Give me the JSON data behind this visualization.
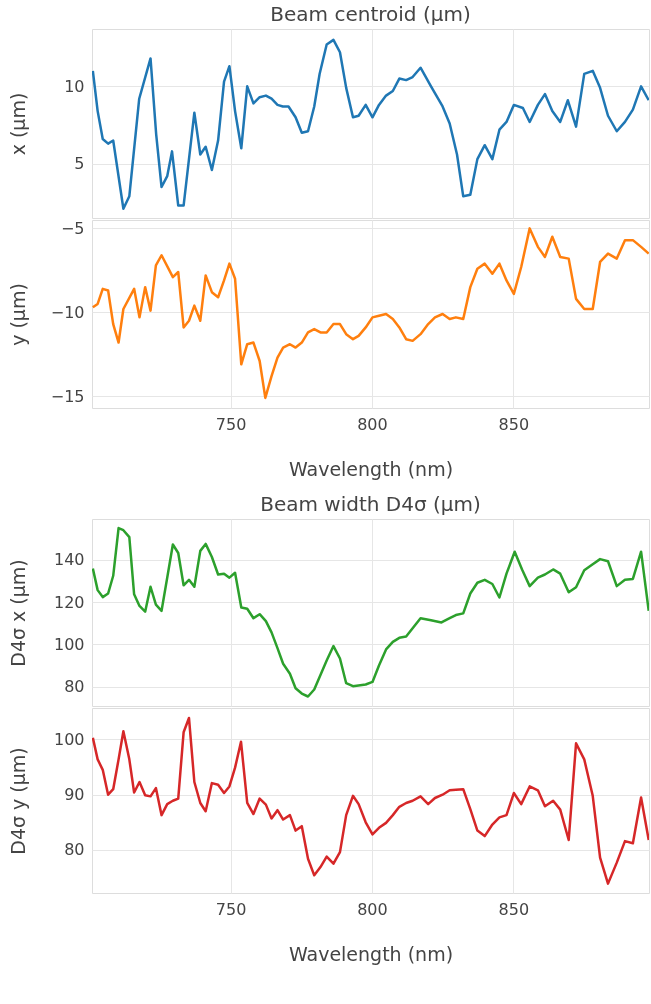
{
  "chart_data": [
    {
      "type": "line",
      "title": "Beam centroid (µm)",
      "ylabel": "x (µm)",
      "xlim": [
        701,
        898
      ],
      "xticks": [
        750,
        800,
        850
      ],
      "ylim": [
        1.5,
        13.7
      ],
      "yticks": [
        5,
        10
      ],
      "grid": true,
      "tick_labels": "y",
      "x": [
        701.3,
        703,
        704.8,
        706.7,
        708.5,
        712.1,
        714.2,
        717.7,
        721.7,
        723.7,
        725.6,
        727.6,
        729.3,
        731.5,
        733.4,
        737.2,
        739.3,
        741.2,
        743.4,
        745.6,
        747.7,
        749.6,
        751.6,
        753.8,
        755.9,
        758.1,
        760.3,
        762.5,
        764.5,
        766.6,
        768.5,
        770.5,
        773,
        775.2,
        777.4,
        779.6,
        781.5,
        784,
        786.4,
        788.7,
        790.9,
        793.3,
        795.3,
        797.8,
        800.2,
        802.5,
        805,
        807.4,
        809.7,
        812.1,
        814.4,
        817.2,
        820.9,
        825,
        827.5,
        830.1,
        832.3,
        834.8,
        837.3,
        839.9,
        842.6,
        845.1,
        847.6,
        850.2,
        853.4,
        855.8,
        858.7,
        861.2,
        863.8,
        866.6,
        869.3,
        872.2,
        875.1,
        878.1,
        880.7,
        883.5,
        886.6,
        889.5,
        892.3,
        895.2,
        897.9
      ],
      "series": [
        {
          "color": "#1f77b4",
          "values": [
            11.0,
            8.4,
            6.6,
            6.3,
            6.5,
            2.1,
            2.9,
            9.2,
            11.8,
            6.9,
            3.5,
            4.2,
            5.8,
            2.3,
            2.3,
            8.3,
            5.6,
            6.1,
            4.6,
            6.5,
            10.3,
            11.3,
            8.4,
            6.0,
            10.0,
            8.9,
            9.3,
            9.4,
            9.2,
            8.8,
            8.7,
            8.7,
            8.0,
            7.0,
            7.1,
            8.7,
            10.8,
            12.7,
            13.0,
            12.2,
            9.9,
            8.0,
            8.1,
            8.8,
            8.0,
            8.8,
            9.4,
            9.7,
            10.5,
            10.4,
            10.6,
            11.2,
            10.0,
            8.7,
            7.6,
            5.6,
            2.9,
            3.0,
            5.3,
            6.2,
            5.3,
            7.2,
            7.7,
            8.8,
            8.6,
            7.7,
            8.8,
            9.5,
            8.4,
            7.7,
            9.1,
            7.4,
            10.8,
            11.0,
            9.9,
            8.1,
            7.1,
            7.7,
            8.5,
            10.0,
            9.1
          ]
        }
      ]
    },
    {
      "type": "line",
      "xlabel": "Wavelength (nm)",
      "ylabel": "y (µm)",
      "xlim": [
        701,
        898
      ],
      "xticks": [
        750,
        800,
        850
      ],
      "ylim": [
        -15.7,
        -4.5
      ],
      "yticks": [
        -15,
        -10,
        -5
      ],
      "grid": true,
      "x": [
        701.3,
        703,
        704.8,
        706.7,
        708.5,
        710.4,
        712.1,
        715.9,
        717.8,
        719.8,
        721.7,
        723.6,
        725.6,
        729.6,
        731.5,
        733.4,
        735.3,
        737.2,
        739.3,
        741.2,
        743.4,
        745.6,
        747.7,
        749.6,
        751.6,
        753.8,
        755.9,
        758.1,
        760.3,
        762.3,
        764.5,
        766.6,
        768.6,
        771,
        773,
        775.2,
        777.4,
        779.6,
        781.8,
        784,
        786.4,
        788.7,
        790.9,
        793.3,
        795.3,
        797.8,
        800.2,
        802.5,
        805,
        807.4,
        809.7,
        812.1,
        814.4,
        817.2,
        819.9,
        822.3,
        825,
        827.5,
        829.7,
        832.3,
        834.8,
        837.3,
        839.9,
        842.6,
        845.1,
        847.6,
        850.2,
        852.8,
        855.8,
        858.7,
        861.2,
        863.8,
        866.6,
        869.6,
        872.2,
        875.1,
        878.1,
        880.7,
        883.5,
        886.6,
        889.5,
        892.3,
        895.2,
        897.9
      ],
      "series": [
        {
          "color": "#ff7f0e",
          "values": [
            -9.7,
            -9.5,
            -8.6,
            -8.7,
            -10.7,
            -11.8,
            -9.8,
            -8.6,
            -10.3,
            -8.5,
            -9.9,
            -7.2,
            -6.6,
            -7.9,
            -7.6,
            -10.9,
            -10.5,
            -9.6,
            -10.5,
            -7.8,
            -8.8,
            -9.1,
            -8.1,
            -7.1,
            -8.0,
            -13.1,
            -11.9,
            -11.8,
            -12.9,
            -15.1,
            -13.8,
            -12.7,
            -12.1,
            -11.9,
            -12.1,
            -11.8,
            -11.2,
            -11.0,
            -11.2,
            -11.2,
            -10.7,
            -10.7,
            -11.3,
            -11.6,
            -11.4,
            -10.9,
            -10.3,
            -10.2,
            -10.1,
            -10.4,
            -10.9,
            -11.6,
            -11.7,
            -11.3,
            -10.7,
            -10.3,
            -10.1,
            -10.4,
            -10.3,
            -10.4,
            -8.5,
            -7.4,
            -7.1,
            -7.7,
            -7.1,
            -8.1,
            -8.9,
            -7.3,
            -5.0,
            -6.1,
            -6.7,
            -5.5,
            -6.7,
            -6.8,
            -9.2,
            -9.8,
            -9.8,
            -7.0,
            -6.5,
            -6.8,
            -5.7,
            -5.7,
            -6.1,
            -6.5
          ]
        }
      ]
    },
    {
      "type": "line",
      "title": "Beam width D4σ (µm)",
      "ylabel": "D4σ x (µm)",
      "xlim": [
        701,
        898
      ],
      "xticks": [
        750,
        800,
        850
      ],
      "ylim": [
        70.8,
        159.4
      ],
      "yticks": [
        80,
        100,
        120,
        140
      ],
      "grid": true,
      "tick_labels": "y",
      "x": [
        701.3,
        703,
        704.8,
        706.7,
        708.5,
        710.4,
        712.1,
        714.2,
        715.9,
        717.8,
        719.8,
        721.7,
        723.6,
        725.6,
        727.6,
        729.6,
        731.5,
        733.4,
        735.3,
        737.2,
        739.3,
        741.2,
        743.4,
        745.6,
        747.7,
        749.6,
        751.6,
        753.8,
        755.9,
        758.1,
        760.3,
        762.5,
        764.5,
        766.6,
        768.6,
        771,
        773,
        775.2,
        777.4,
        779.6,
        781.8,
        784,
        786.4,
        788.7,
        790.9,
        793.3,
        797.8,
        800.2,
        802.5,
        805,
        807.4,
        809.7,
        812.1,
        814.4,
        817.2,
        820.9,
        824.6,
        827.5,
        829.7,
        832.3,
        834.8,
        837.3,
        839.9,
        842.6,
        845.1,
        847.6,
        850.5,
        853.1,
        855.8,
        858.7,
        861.2,
        864.1,
        866.6,
        869.6,
        872.2,
        875.1,
        878.1,
        880.7,
        883.5,
        886.6,
        889.5,
        892.3,
        895.2,
        897.9
      ],
      "series": [
        {
          "color": "#2ca02c",
          "values": [
            135.9,
            125.7,
            122.4,
            124.1,
            132.5,
            155.1,
            154.1,
            150.8,
            123.7,
            118.2,
            115.5,
            127.3,
            118.8,
            115.9,
            131.6,
            147.3,
            143.3,
            128.0,
            130.6,
            127.3,
            144.3,
            147.6,
            141.4,
            133.1,
            133.5,
            131.6,
            133.9,
            117.5,
            116.9,
            112.4,
            114.3,
            111.0,
            105.7,
            98.2,
            90.8,
            86.1,
            79.2,
            76.7,
            75.3,
            78.6,
            85.5,
            92.4,
            99.2,
            93.3,
            81.6,
            80.2,
            81.0,
            82.2,
            90.0,
            97.6,
            101.2,
            103.1,
            103.7,
            107.6,
            112.4,
            111.4,
            110.4,
            112.4,
            113.9,
            114.7,
            124.1,
            129.2,
            130.6,
            128.6,
            122.2,
            133.5,
            143.9,
            135.5,
            127.6,
            131.6,
            133.1,
            135.5,
            133.5,
            124.7,
            127.1,
            135.1,
            138.0,
            140.4,
            139.4,
            127.6,
            130.6,
            131.0,
            143.9,
            115.9
          ]
        }
      ]
    },
    {
      "type": "line",
      "xlabel": "Wavelength (nm)",
      "ylabel": "D4σ y (µm)",
      "xlim": [
        701,
        898
      ],
      "xticks": [
        750,
        800,
        850
      ],
      "ylim": [
        72.2,
        105.7
      ],
      "yticks": [
        80,
        90,
        100
      ],
      "grid": true,
      "x": [
        701.3,
        703,
        704.8,
        706.7,
        708.5,
        710.4,
        712.1,
        714.2,
        715.9,
        717.8,
        719.8,
        721.7,
        723.6,
        725.6,
        727.6,
        729.6,
        731.5,
        733.4,
        735.3,
        737.2,
        739.3,
        741.2,
        743.4,
        745.6,
        747.7,
        749.6,
        751.6,
        753.7,
        755.9,
        758.1,
        760.3,
        762.5,
        764.5,
        766.6,
        768.6,
        771,
        773,
        775.2,
        777.4,
        779.6,
        781.8,
        784,
        786.4,
        788.7,
        790.9,
        793.3,
        795.3,
        797.8,
        800.2,
        802.5,
        805,
        807.4,
        809.7,
        812.1,
        814.4,
        817.2,
        819.9,
        822.3,
        825,
        827.5,
        829.7,
        832.3,
        834.8,
        837.3,
        839.9,
        842.6,
        845.1,
        847.6,
        850.2,
        852.8,
        855.8,
        858.7,
        861.2,
        864.1,
        866.6,
        869.6,
        872.2,
        875.1,
        878.1,
        880.7,
        883.5,
        886.6,
        889.5,
        892.3,
        895.2,
        897.9
      ],
      "series": [
        {
          "color": "#d62728",
          "values": [
            100.3,
            96.4,
            94.5,
            90.0,
            91.0,
            96.4,
            101.5,
            96.4,
            90.4,
            92.3,
            89.9,
            89.7,
            91.2,
            86.3,
            88.3,
            88.9,
            89.3,
            101.3,
            103.9,
            92.3,
            88.5,
            87.0,
            92.1,
            91.8,
            90.3,
            91.5,
            94.9,
            99.6,
            88.5,
            86.5,
            89.3,
            88.2,
            85.7,
            87.2,
            85.5,
            86.3,
            83.5,
            84.3,
            78.4,
            75.4,
            76.9,
            78.8,
            77.5,
            79.6,
            86.3,
            89.8,
            88.3,
            85.0,
            82.8,
            84.0,
            84.9,
            86.3,
            87.8,
            88.5,
            88.9,
            89.7,
            88.3,
            89.4,
            90.0,
            90.8,
            90.9,
            91.0,
            87.4,
            83.5,
            82.5,
            84.6,
            85.9,
            86.3,
            90.3,
            88.3,
            91.5,
            90.8,
            87.9,
            88.9,
            87.3,
            81.8,
            99.3,
            96.4,
            89.8,
            78.6,
            73.9,
            77.7,
            81.6,
            81.2,
            89.5,
            81.8
          ]
        }
      ]
    }
  ]
}
